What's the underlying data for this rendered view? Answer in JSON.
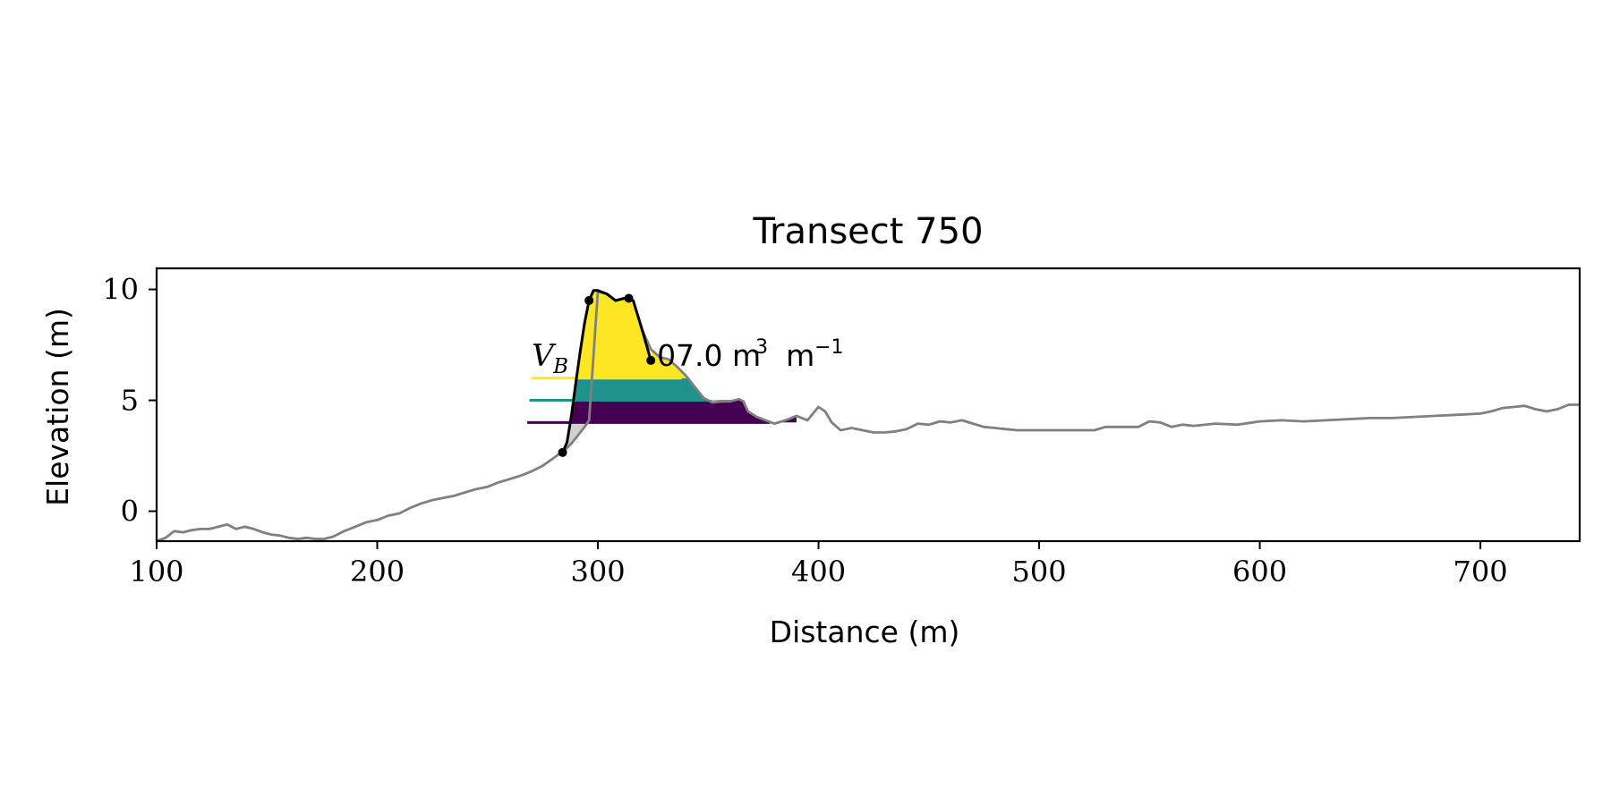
{
  "chart_data": {
    "type": "area",
    "title": "Transect 750",
    "xlabel": "Distance (m)",
    "ylabel": "Elevation (m)",
    "xlim": [
      100,
      745
    ],
    "ylim": [
      -1.35,
      10.95
    ],
    "xticks": [
      100,
      200,
      300,
      400,
      500,
      600,
      700
    ],
    "yticks": [
      0,
      5,
      10
    ],
    "grid": false,
    "annotation": {
      "symbol": "V",
      "subscript": "B",
      "text": "07.0 m",
      "exp": "3",
      "unit_mid": "m",
      "exp2": "−1",
      "x": 270,
      "y": 6.55
    },
    "profile": {
      "name": "",
      "color": "#808080",
      "x": [
        100,
        104,
        108,
        112,
        116,
        120,
        124,
        128,
        132,
        136,
        140,
        144,
        148,
        152,
        156,
        160,
        164,
        168,
        172,
        176,
        180,
        185,
        190,
        195,
        200,
        205,
        210,
        215,
        220,
        225,
        230,
        235,
        240,
        245,
        250,
        255,
        260,
        265,
        270,
        275,
        280,
        284,
        286,
        288,
        290,
        292,
        294,
        296,
        300,
        304,
        308,
        312,
        316,
        320,
        324,
        328,
        332,
        336,
        340,
        344,
        348,
        352,
        356,
        360,
        364,
        366,
        368,
        372,
        376,
        380,
        385,
        390,
        395,
        400,
        403,
        406,
        410,
        415,
        420,
        425,
        430,
        435,
        440,
        445,
        450,
        455,
        460,
        465,
        470,
        475,
        480,
        485,
        490,
        495,
        500,
        510,
        520,
        525,
        530,
        540,
        545,
        550,
        555,
        560,
        565,
        570,
        580,
        590,
        600,
        610,
        620,
        630,
        640,
        650,
        660,
        670,
        680,
        690,
        700,
        705,
        710,
        715,
        720,
        725,
        730,
        735,
        740,
        745
      ],
      "y": [
        -1.35,
        -1.2,
        -0.9,
        -0.95,
        -0.85,
        -0.8,
        -0.8,
        -0.7,
        -0.6,
        -0.8,
        -0.7,
        -0.8,
        -0.95,
        -1.05,
        -1.1,
        -1.2,
        -1.25,
        -1.2,
        -1.25,
        -1.25,
        -1.15,
        -0.9,
        -0.7,
        -0.5,
        -0.4,
        -0.2,
        -0.1,
        0.15,
        0.35,
        0.5,
        0.6,
        0.7,
        0.85,
        1.0,
        1.1,
        1.3,
        1.45,
        1.6,
        1.8,
        2.05,
        2.4,
        2.7,
        2.85,
        3.05,
        3.3,
        3.55,
        3.8,
        4.1,
        9.9,
        9.8,
        9.5,
        9.6,
        9.5,
        8.2,
        7.3,
        6.95,
        6.85,
        6.5,
        6.1,
        5.6,
        5.1,
        4.9,
        4.95,
        4.95,
        5.05,
        4.95,
        4.5,
        4.25,
        4.1,
        3.95,
        4.1,
        4.3,
        4.1,
        4.7,
        4.5,
        4.0,
        3.65,
        3.75,
        3.65,
        3.55,
        3.55,
        3.6,
        3.7,
        3.95,
        3.9,
        4.05,
        4.0,
        4.1,
        3.95,
        3.8,
        3.75,
        3.7,
        3.65,
        3.65,
        3.65,
        3.65,
        3.65,
        3.65,
        3.8,
        3.8,
        3.8,
        4.05,
        4.0,
        3.8,
        3.9,
        3.85,
        3.95,
        3.9,
        4.05,
        4.1,
        4.05,
        4.1,
        4.15,
        4.2,
        4.2,
        4.25,
        4.3,
        4.35,
        4.4,
        4.5,
        4.65,
        4.7,
        4.75,
        4.6,
        4.5,
        4.6,
        4.8,
        4.8
      ]
    },
    "dune": {
      "color": "#000000",
      "x": [
        284,
        286,
        288,
        290,
        292,
        294,
        296,
        298,
        300,
        304,
        308,
        312,
        316,
        320,
        324
      ],
      "y": [
        2.65,
        3.1,
        4.3,
        5.8,
        7.2,
        8.5,
        9.5,
        9.95,
        9.95,
        9.8,
        9.5,
        9.6,
        9.5,
        8.2,
        6.8
      ],
      "points_x": [
        284,
        296,
        314,
        324
      ],
      "points_y": [
        2.65,
        9.5,
        9.6,
        6.8
      ]
    },
    "bands": [
      {
        "name": "",
        "color": "#440154",
        "lower": 4.0,
        "upper": 5.0,
        "line_x": [
          268,
          378
        ]
      },
      {
        "name": "",
        "color": "#21918c",
        "lower": 5.0,
        "upper": 6.0,
        "line_x": [
          269,
          350
        ]
      },
      {
        "name": "",
        "color": "#fde725",
        "lower": 6.0,
        "upper": 10.0,
        "line_x": [
          270,
          338
        ]
      }
    ],
    "gap_fill_color": "#cccccc"
  }
}
